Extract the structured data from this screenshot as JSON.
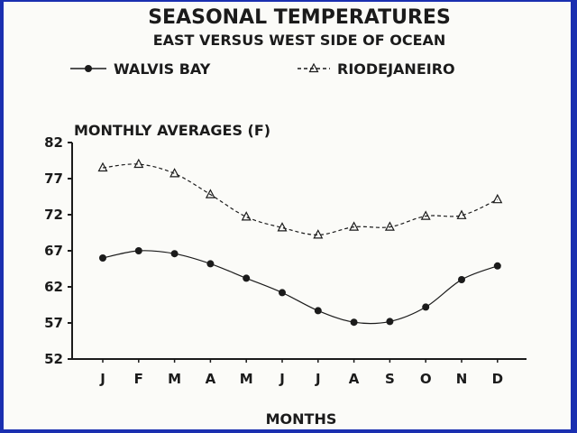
{
  "chart_data": {
    "type": "line",
    "title": "SEASONAL TEMPERATURES",
    "subtitle": "EAST VERSUS WEST SIDE OF OCEAN",
    "ylabel": "MONTHLY AVERAGES (F)",
    "xlabel": "MONTHS",
    "categories": [
      "J",
      "F",
      "M",
      "A",
      "M",
      "J",
      "J",
      "A",
      "S",
      "O",
      "N",
      "D"
    ],
    "yticks": [
      52,
      57,
      62,
      67,
      72,
      77,
      82
    ],
    "ylim": [
      52,
      82
    ],
    "grid": false,
    "legend_position": "top",
    "series": [
      {
        "name": "WALVIS BAY",
        "marker": "filled-circle",
        "line_style": "solid",
        "values": [
          66,
          67,
          66.6,
          65.2,
          63.2,
          61.2,
          58.7,
          57.1,
          57.2,
          59.2,
          63,
          64.9
        ]
      },
      {
        "name": "RIODEJANEIRO",
        "marker": "open-triangle",
        "line_style": "dashed",
        "values": [
          78.5,
          79,
          77.7,
          74.8,
          71.7,
          70.2,
          69.2,
          70.3,
          70.3,
          71.8,
          71.9,
          74.1
        ]
      }
    ],
    "colors": {
      "background": "#fbfbf8",
      "border": "#1a2fb0",
      "ink": "#1b1b1b"
    }
  }
}
